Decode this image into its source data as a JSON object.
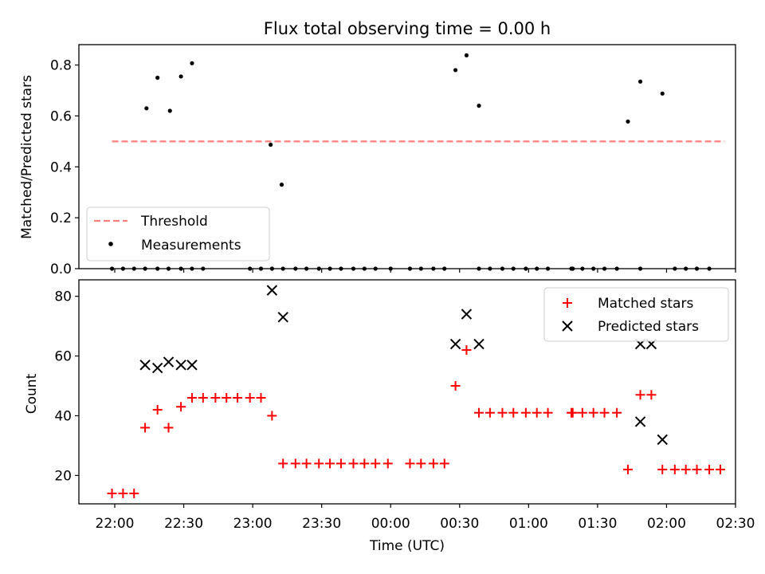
{
  "chart_data": [
    {
      "type": "scatter",
      "title": "Flux total observing time = 0.00 h",
      "xlabel": "",
      "ylabel": "Matched/Predicted stars",
      "ylim": [
        0,
        0.88
      ],
      "yticks": [
        "0.0",
        "0.2",
        "0.4",
        "0.6",
        "0.8"
      ],
      "ytick_values": [
        0,
        0.2,
        0.4,
        0.6,
        0.8
      ],
      "legend_position": "lower-left",
      "threshold": {
        "name": "Threshold",
        "value": 0.5,
        "x_start": 21.98,
        "x_end": 26.42,
        "color": "#ff7f7f"
      },
      "series": [
        {
          "name": "Measurements",
          "color": "#000000",
          "x": [
            21.98,
            22.06,
            22.14,
            22.22,
            22.31,
            22.39,
            22.48,
            22.56,
            22.64,
            22.98,
            23.06,
            23.14,
            23.22,
            23.31,
            23.39,
            23.48,
            23.56,
            23.64,
            23.73,
            23.81,
            23.89,
            24.0,
            24.14,
            24.22,
            24.31,
            24.39,
            24.64,
            24.72,
            24.81,
            24.89,
            24.98,
            25.06,
            25.14,
            25.31,
            25.32,
            25.39,
            25.47,
            25.55,
            25.64,
            25.81,
            26.06,
            26.14,
            26.22,
            26.31,
            22.23,
            22.31,
            22.4,
            22.48,
            22.56,
            23.13,
            23.21,
            24.47,
            24.55,
            24.64,
            25.72,
            25.81,
            25.97
          ],
          "y": [
            0,
            0,
            0,
            0,
            0,
            0,
            0,
            0,
            0,
            0,
            0,
            0,
            0,
            0,
            0,
            0,
            0,
            0,
            0,
            0,
            0,
            0,
            0,
            0,
            0,
            0,
            0,
            0,
            0,
            0,
            0,
            0,
            0,
            0,
            0,
            0,
            0,
            0,
            0,
            0,
            0,
            0,
            0,
            0,
            0.63,
            0.75,
            0.62,
            0.755,
            0.807,
            0.487,
            0.33,
            0.78,
            0.838,
            0.64,
            0.578,
            0.735,
            0.688
          ]
        }
      ]
    },
    {
      "type": "scatter",
      "title": "",
      "xlabel": "Time (UTC)",
      "ylabel": "Count",
      "ylim": [
        10.5,
        85.5
      ],
      "yticks": [
        "20",
        "40",
        "60",
        "80"
      ],
      "ytick_values": [
        20,
        40,
        60,
        80
      ],
      "xlim": [
        21.74,
        26.5
      ],
      "xticks": [
        "22:00",
        "22:30",
        "23:00",
        "23:30",
        "00:00",
        "00:30",
        "01:00",
        "01:30",
        "02:00",
        "02:30"
      ],
      "xtick_values": [
        22.0,
        22.5,
        23.0,
        23.5,
        24.0,
        24.5,
        25.0,
        25.5,
        26.0,
        26.5
      ],
      "legend_position": "upper-right",
      "series": [
        {
          "name": "Matched stars",
          "color": "#ff0000",
          "marker": "plus",
          "x": [
            21.98,
            22.06,
            22.14,
            22.22,
            22.31,
            22.39,
            22.48,
            22.56,
            22.64,
            22.73,
            22.81,
            22.89,
            22.98,
            23.06,
            23.14,
            23.22,
            23.31,
            23.39,
            23.48,
            23.56,
            23.64,
            23.73,
            23.81,
            23.89,
            23.98,
            24.14,
            24.22,
            24.31,
            24.39,
            24.47,
            24.55,
            24.64,
            24.72,
            24.81,
            24.89,
            24.98,
            25.06,
            25.14,
            25.31,
            25.39,
            25.47,
            25.55,
            25.64,
            25.72,
            25.81,
            25.89,
            25.97,
            26.06,
            26.14,
            26.22,
            26.31,
            26.39,
            25.32
          ],
          "y": [
            14,
            14,
            14,
            36,
            42,
            36,
            43,
            46,
            46,
            46,
            46,
            46,
            46,
            46,
            40,
            24,
            24,
            24,
            24,
            24,
            24,
            24,
            24,
            24,
            24,
            24,
            24,
            24,
            24,
            50,
            62,
            41,
            41,
            41,
            41,
            41,
            41,
            41,
            41,
            41,
            41,
            41,
            41,
            22,
            47,
            47,
            22,
            22,
            22,
            22,
            22,
            22,
            41
          ]
        },
        {
          "name": "Predicted stars",
          "color": "#000000",
          "marker": "x",
          "x": [
            22.22,
            22.31,
            22.39,
            22.48,
            22.56,
            23.14,
            23.22,
            24.47,
            24.55,
            24.64,
            25.81,
            25.89,
            25.97,
            25.81
          ],
          "y": [
            57,
            56,
            58,
            57,
            57,
            82,
            73,
            64,
            74,
            64,
            38,
            64,
            32,
            64
          ]
        }
      ]
    }
  ]
}
